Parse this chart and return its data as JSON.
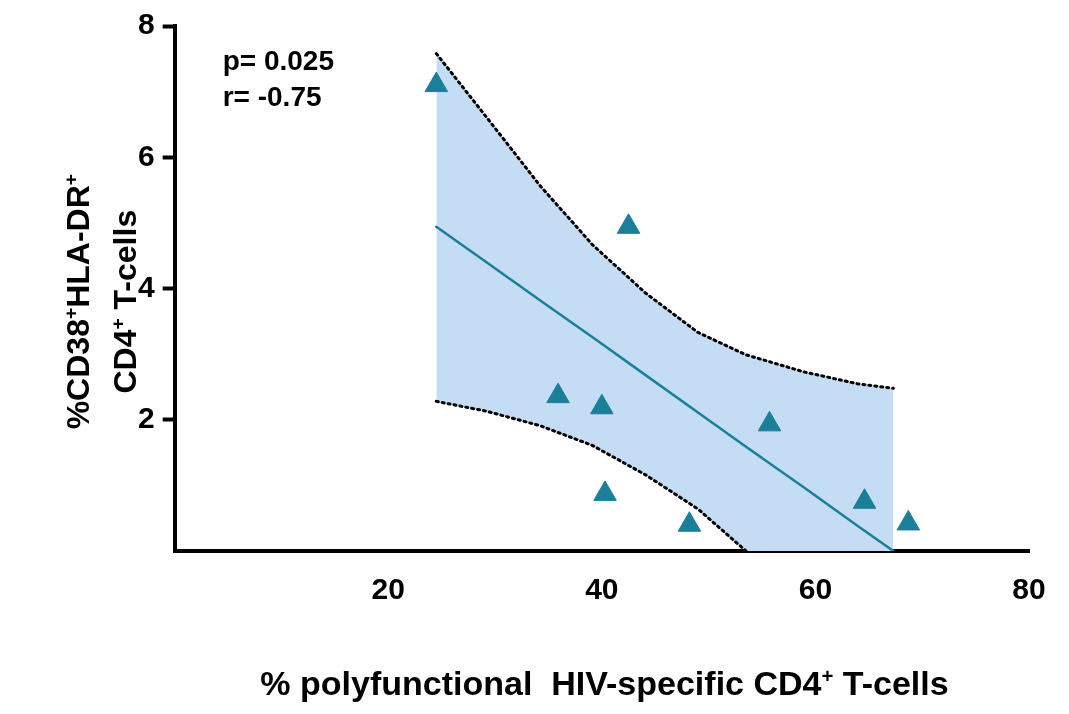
{
  "chart_data": {
    "type": "scatter",
    "xlabel": "% polyfunctional  HIV-specific CD4$^{+}$ T-cells",
    "ylabel": "%CD38$^{+}$HLA-DR$^{+}$ CD4$^{+}$ T-cells",
    "xlim": [
      0,
      80
    ],
    "xticks": [
      20,
      40,
      60,
      80
    ],
    "ylim": [
      0,
      8
    ],
    "yticks": [
      2,
      4,
      6,
      8
    ],
    "grid": false,
    "legend": false,
    "annotations": [
      "p= 0.025",
      "r= -0.75"
    ],
    "series": [
      {
        "color": "#1b7f99",
        "marker": "triangle",
        "x": [
          24.5,
          42.5,
          35.9,
          40.0,
          40.3,
          48.2,
          55.7,
          64.6,
          68.7
        ],
        "values": [
          7.1,
          4.94,
          2.36,
          2.19,
          0.87,
          0.4,
          1.93,
          0.75,
          0.42
        ]
      },
      {
        "type": "line",
        "color": "#1b7f99",
        "line_style": "solid",
        "marker": "none",
        "x": [
          24.5,
          29.2,
          34.2,
          39.1,
          44.1,
          49.0,
          53.5,
          58.9,
          63.9,
          67.3
        ],
        "values": [
          4.94,
          4.4,
          3.82,
          3.26,
          2.68,
          2.11,
          1.59,
          0.97,
          0.39,
          0
        ],
        "lower": [
          2.28,
          2.13,
          1.91,
          1.61,
          1.16,
          0.64,
          0,
          0,
          0,
          0
        ],
        "upper": [
          7.58,
          6.61,
          5.57,
          4.67,
          3.93,
          3.33,
          2.99,
          2.73,
          2.55,
          2.48
        ]
      },
      {
        "type": "line",
        "color": "#000000",
        "line_style": "dotted",
        "marker": "none",
        "x": [
          24.5,
          29.2,
          34.2,
          39.1,
          44.1,
          49.0,
          53.5,
          58.9,
          63.9,
          67.3
        ],
        "values": [
          7.58,
          6.61,
          5.57,
          4.67,
          3.93,
          3.33,
          2.99,
          2.73,
          2.55,
          2.48
        ]
      },
      {
        "type": "line",
        "color": "#000000",
        "line_style": "dotted",
        "marker": "none",
        "x": [
          24.5,
          29.2,
          34.2,
          39.1,
          44.1,
          49.0,
          53.5
        ],
        "values": [
          2.28,
          2.13,
          1.91,
          1.61,
          1.16,
          0.64,
          0
        ]
      }
    ]
  }
}
